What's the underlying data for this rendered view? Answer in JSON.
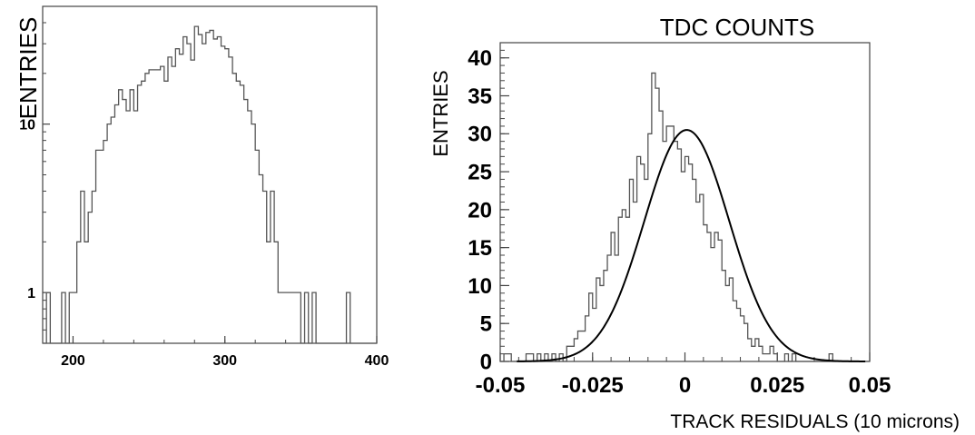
{
  "chart_data": [
    {
      "type": "histogram",
      "title": "",
      "xlabel": "",
      "ylabel": "ENTRIES",
      "xlim": [
        180,
        400
      ],
      "ylim": [
        0.5,
        50
      ],
      "yscale": "log",
      "xticks": [
        200,
        300,
        400
      ],
      "xtick_labels": [
        "200",
        "300",
        "400"
      ],
      "yticks": [
        1,
        10
      ],
      "ytick_labels": [
        "1",
        "10"
      ],
      "grid": false,
      "bins": {
        "edges_start": 180,
        "bin_width": 2.5,
        "counts": [
          0,
          1,
          0,
          0,
          0,
          1,
          0,
          1,
          1,
          2,
          4,
          2,
          3,
          4,
          7,
          7,
          8,
          10,
          11,
          13,
          16,
          14,
          12,
          16,
          12,
          17,
          18,
          20,
          21,
          21,
          21,
          22,
          18,
          25,
          22,
          28,
          26,
          33,
          30,
          24,
          38,
          34,
          30,
          35,
          36,
          32,
          33,
          29,
          28,
          25,
          20,
          18,
          17,
          14,
          12,
          10,
          7,
          5,
          4,
          2,
          4,
          2,
          1,
          1,
          1,
          1,
          1,
          1,
          0,
          1,
          0,
          1,
          0,
          0,
          0,
          0,
          0,
          0,
          0,
          0,
          1,
          0,
          0,
          0,
          0,
          0,
          0,
          0
        ]
      }
    },
    {
      "type": "histogram",
      "title": "TDC COUNTS",
      "xlabel": "TRACK RESIDUALS (10 microns)",
      "ylabel": "ENTRIES",
      "xlim": [
        -0.05,
        0.05
      ],
      "ylim": [
        0,
        42
      ],
      "yscale": "linear",
      "xticks": [
        -0.05,
        -0.025,
        0,
        0.025,
        0.05
      ],
      "xtick_labels": [
        "-0.05",
        "-0.025",
        "0",
        "0.025",
        "0.05"
      ],
      "yticks": [
        0,
        5,
        10,
        15,
        20,
        25,
        30,
        35,
        40
      ],
      "ytick_labels": [
        "0",
        "5",
        "10",
        "15",
        "20",
        "25",
        "30",
        "35",
        "40"
      ],
      "grid": false,
      "bins": {
        "edges_start": -0.05,
        "bin_width": 0.001,
        "counts": [
          0,
          1,
          1,
          0,
          0,
          0,
          0,
          1,
          1,
          0,
          1,
          0,
          1,
          0,
          1,
          0,
          1,
          0,
          2,
          2,
          3,
          4,
          4,
          6,
          9,
          7,
          11,
          10,
          12,
          14,
          17,
          14,
          19,
          20,
          19,
          24,
          21,
          27,
          26,
          24,
          30,
          38,
          36,
          33,
          29,
          31,
          31,
          29,
          28,
          25,
          27,
          26,
          24,
          21,
          22,
          18,
          17,
          15,
          17,
          16,
          12,
          10,
          11,
          8,
          7,
          6,
          5,
          3,
          2,
          3,
          2,
          1,
          1,
          2,
          1,
          0,
          0,
          1,
          0,
          1,
          0,
          0,
          0,
          0,
          0,
          0,
          0,
          0,
          0,
          1,
          0,
          0,
          0,
          0,
          0,
          0,
          0,
          0,
          0,
          0
        ]
      },
      "fit": {
        "type": "gaussian",
        "amplitude": 30.5,
        "mean": 0.0005,
        "sigma": 0.0115
      }
    }
  ]
}
